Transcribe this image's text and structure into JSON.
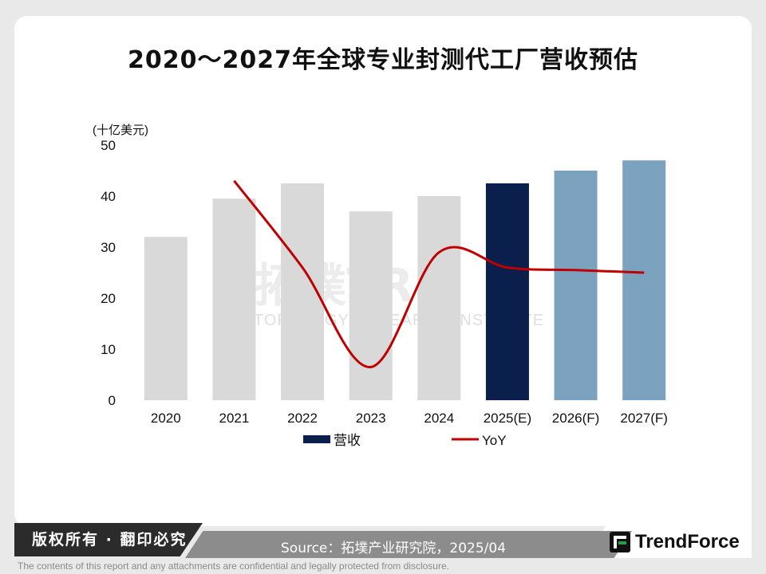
{
  "chart_data": {
    "type": "bar",
    "title": "2020～2027年全球专业封测代工厂营收预估",
    "unit_label": "(十亿美元)",
    "categories": [
      "2020",
      "2021",
      "2022",
      "2023",
      "2024",
      "2025(E)",
      "2026(F)",
      "2027(F)"
    ],
    "series": [
      {
        "name": "营收",
        "values": [
          32,
          39.5,
          42.5,
          37,
          40,
          42.5,
          45,
          47
        ],
        "colors": [
          "#d9d9d9",
          "#d9d9d9",
          "#d9d9d9",
          "#d9d9d9",
          "#d9d9d9",
          "#0a1f4b",
          "#7ba3bf",
          "#7ba3bf"
        ]
      },
      {
        "name": "YoY",
        "type": "line",
        "color": "#c00000",
        "points": [
          {
            "category": "2021",
            "value": 43
          },
          {
            "category": "2022",
            "value": 26
          },
          {
            "category": "2023",
            "value": 6.5
          },
          {
            "category": "2024",
            "value": 29
          },
          {
            "category": "2025(E)",
            "value": 26
          },
          {
            "category": "2026(F)",
            "value": 25.5
          },
          {
            "category": "2027(F)",
            "value": 25
          }
        ]
      }
    ],
    "ylim": [
      0,
      50
    ],
    "yticks": [
      0,
      10,
      20,
      30,
      40,
      50
    ],
    "grid": false,
    "legend": "bottom"
  },
  "watermark": {
    "cn": "拓墣TRI",
    "en": "TOPOLOGY RESEARCH INSTITUTE"
  },
  "footer": {
    "rights": "版权所有 · 翻印必究",
    "source": "Source：拓墣产业研究院，2025/04",
    "logo": "TrendForce",
    "disclaimer": "The contents of this report and any attachments are confidential and legally protected from disclosure."
  }
}
